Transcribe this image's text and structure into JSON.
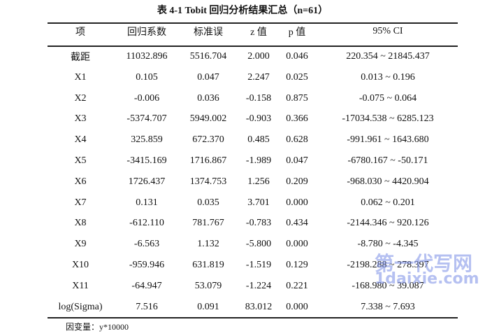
{
  "title": "表 4-1 Tobit 回归分析结果汇总（n=61）",
  "table": {
    "header": [
      "项",
      "回归系数",
      "标准误",
      "z 值",
      "p 值",
      "95% CI"
    ],
    "rows": [
      [
        "截距",
        "11032.896",
        "5516.704",
        "2.000",
        "0.046",
        "220.354 ~ 21845.437"
      ],
      [
        "X1",
        "0.105",
        "0.047",
        "2.247",
        "0.025",
        "0.013 ~ 0.196"
      ],
      [
        "X2",
        "-0.006",
        "0.036",
        "-0.158",
        "0.875",
        "-0.075 ~ 0.064"
      ],
      [
        "X3",
        "-5374.707",
        "5949.002",
        "-0.903",
        "0.366",
        "-17034.538 ~ 6285.123"
      ],
      [
        "X4",
        "325.859",
        "672.370",
        "0.485",
        "0.628",
        "-991.961 ~ 1643.680"
      ],
      [
        "X5",
        "-3415.169",
        "1716.867",
        "-1.989",
        "0.047",
        "-6780.167 ~ -50.171"
      ],
      [
        "X6",
        "1726.437",
        "1374.753",
        "1.256",
        "0.209",
        "-968.030 ~ 4420.904"
      ],
      [
        "X7",
        "0.131",
        "0.035",
        "3.701",
        "0.000",
        "0.062 ~ 0.201"
      ],
      [
        "X8",
        "-612.110",
        "781.767",
        "-0.783",
        "0.434",
        "-2144.346 ~ 920.126"
      ],
      [
        "X9",
        "-6.563",
        "1.132",
        "-5.800",
        "0.000",
        "-8.780 ~ -4.345"
      ],
      [
        "X10",
        "-959.946",
        "631.819",
        "-1.519",
        "0.129",
        "-2198.288 ~ 278.397"
      ],
      [
        "X11",
        "-64.947",
        "53.079",
        "-1.224",
        "0.221",
        "-168.980 ~ 39.087"
      ],
      [
        "log(Sigma)",
        "7.516",
        "0.091",
        "83.012",
        "0.000",
        "7.338 ~ 7.693"
      ]
    ]
  },
  "note": "因变量：y*10000",
  "watermark": {
    "name": "第一代写网",
    "url": "1daixie.com"
  }
}
